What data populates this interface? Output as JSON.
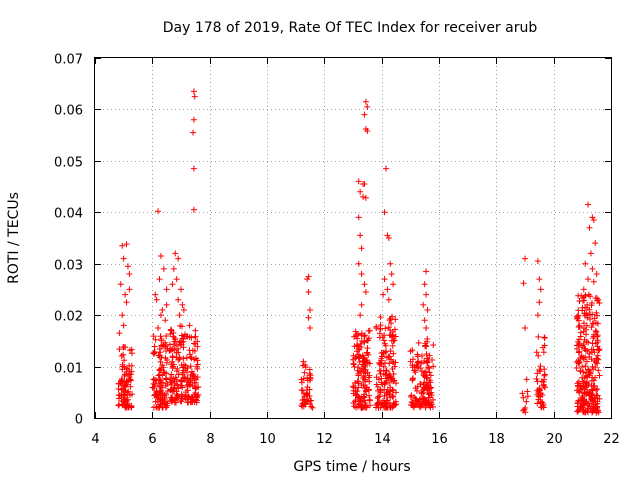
{
  "chart_data": {
    "type": "scatter",
    "title": "Day 178 of 2019, Rate Of TEC Index for receiver arub",
    "xlabel": "GPS time / hours",
    "ylabel": "ROTI / TECUs",
    "xlim": [
      4,
      22
    ],
    "ylim": [
      0,
      0.07
    ],
    "x_ticks": [
      4,
      6,
      8,
      10,
      12,
      14,
      16,
      18,
      20,
      22
    ],
    "x_tick_labels": [
      "4",
      "6",
      "8",
      "10",
      "12",
      "14",
      "16",
      "18",
      "20",
      "22"
    ],
    "y_ticks": [
      0,
      0.01,
      0.02,
      0.03,
      0.04,
      0.05,
      0.06,
      0.07
    ],
    "y_tick_labels": [
      "0",
      "0.01",
      "0.02",
      "0.03",
      "0.04",
      "0.05",
      "0.06",
      "0.07"
    ],
    "grid": true,
    "marker": "+",
    "color": "#ff0000",
    "clusters": [
      {
        "x_range": [
          4.8,
          5.3
        ],
        "y_low": [
          0.002,
          0.014
        ],
        "count": 90,
        "outliers": [
          [
            4.95,
            0.0335
          ],
          [
            5.1,
            0.0338
          ],
          [
            5.0,
            0.031
          ],
          [
            5.15,
            0.0295
          ],
          [
            5.2,
            0.028
          ],
          [
            4.9,
            0.026
          ],
          [
            5.05,
            0.024
          ],
          [
            5.1,
            0.0225
          ],
          [
            4.95,
            0.02
          ],
          [
            5.0,
            0.018
          ],
          [
            5.2,
            0.025
          ],
          [
            4.85,
            0.0165
          ]
        ]
      },
      {
        "x_range": [
          6.0,
          6.55
        ],
        "y_low": [
          0.002,
          0.016
        ],
        "count": 110,
        "outliers": [
          [
            6.2,
            0.0402
          ],
          [
            6.3,
            0.0315
          ],
          [
            6.4,
            0.029
          ],
          [
            6.25,
            0.027
          ],
          [
            6.5,
            0.025
          ],
          [
            6.15,
            0.023
          ],
          [
            6.35,
            0.021
          ],
          [
            6.45,
            0.019
          ],
          [
            6.2,
            0.0175
          ],
          [
            6.3,
            0.02
          ],
          [
            6.5,
            0.022
          ],
          [
            6.1,
            0.024
          ]
        ]
      },
      {
        "x_range": [
          6.6,
          7.2
        ],
        "y_low": [
          0.003,
          0.018
        ],
        "count": 120,
        "outliers": [
          [
            6.8,
            0.032
          ],
          [
            6.9,
            0.031
          ],
          [
            6.75,
            0.029
          ],
          [
            6.85,
            0.027
          ],
          [
            7.0,
            0.025
          ],
          [
            6.9,
            0.023
          ],
          [
            7.1,
            0.021
          ],
          [
            6.7,
            0.026
          ],
          [
            7.05,
            0.022
          ],
          [
            6.95,
            0.02
          ]
        ]
      },
      {
        "x_range": [
          7.2,
          7.6
        ],
        "y_low": [
          0.003,
          0.016
        ],
        "count": 80,
        "outliers": [
          [
            7.45,
            0.0635
          ],
          [
            7.48,
            0.0625
          ],
          [
            7.45,
            0.058
          ],
          [
            7.42,
            0.0555
          ],
          [
            7.45,
            0.0485
          ],
          [
            7.45,
            0.0405
          ],
          [
            7.3,
            0.018
          ],
          [
            7.5,
            0.017
          ]
        ]
      },
      {
        "x_range": [
          11.2,
          11.6
        ],
        "y_low": [
          0.002,
          0.011
        ],
        "count": 45,
        "outliers": [
          [
            11.45,
            0.0275
          ],
          [
            11.4,
            0.027
          ],
          [
            11.45,
            0.0245
          ],
          [
            11.5,
            0.021
          ],
          [
            11.45,
            0.0195
          ],
          [
            11.5,
            0.0175
          ]
        ]
      },
      {
        "x_range": [
          13.0,
          13.6
        ],
        "y_low": [
          0.002,
          0.017
        ],
        "count": 140,
        "outliers": [
          [
            13.45,
            0.0615
          ],
          [
            13.5,
            0.0605
          ],
          [
            13.4,
            0.059
          ],
          [
            13.45,
            0.0562
          ],
          [
            13.5,
            0.0558
          ],
          [
            13.2,
            0.046
          ],
          [
            13.35,
            0.0455
          ],
          [
            13.4,
            0.0455
          ],
          [
            13.25,
            0.044
          ],
          [
            13.35,
            0.043
          ],
          [
            13.45,
            0.0428
          ],
          [
            13.2,
            0.039
          ],
          [
            13.25,
            0.0355
          ],
          [
            13.3,
            0.033
          ],
          [
            13.2,
            0.03
          ],
          [
            13.3,
            0.028
          ],
          [
            13.4,
            0.026
          ],
          [
            13.45,
            0.0245
          ],
          [
            13.3,
            0.022
          ],
          [
            13.25,
            0.02
          ]
        ]
      },
      {
        "x_range": [
          13.8,
          14.5
        ],
        "y_low": [
          0.002,
          0.02
        ],
        "count": 160,
        "outliers": [
          [
            14.15,
            0.0485
          ],
          [
            14.1,
            0.04
          ],
          [
            14.2,
            0.0355
          ],
          [
            14.25,
            0.035
          ],
          [
            14.3,
            0.03
          ],
          [
            14.35,
            0.028
          ],
          [
            14.1,
            0.027
          ],
          [
            14.2,
            0.025
          ],
          [
            14.05,
            0.024
          ],
          [
            14.25,
            0.023
          ],
          [
            14.4,
            0.026
          ]
        ]
      },
      {
        "x_range": [
          15.0,
          15.8
        ],
        "y_low": [
          0.002,
          0.016
        ],
        "count": 140,
        "outliers": [
          [
            15.55,
            0.0285
          ],
          [
            15.5,
            0.026
          ],
          [
            15.55,
            0.024
          ],
          [
            15.45,
            0.022
          ],
          [
            15.6,
            0.021
          ],
          [
            15.5,
            0.019
          ],
          [
            15.55,
            0.0175
          ]
        ]
      },
      {
        "x_range": [
          18.9,
          19.1
        ],
        "y_low": [
          0.001,
          0.008
        ],
        "count": 10,
        "outliers": [
          [
            19.0,
            0.031
          ],
          [
            18.95,
            0.0262
          ],
          [
            19.0,
            0.0175
          ]
        ]
      },
      {
        "x_range": [
          19.4,
          19.7
        ],
        "y_low": [
          0.002,
          0.016
        ],
        "count": 45,
        "outliers": [
          [
            19.45,
            0.0305
          ],
          [
            19.5,
            0.027
          ],
          [
            19.55,
            0.025
          ],
          [
            19.5,
            0.0225
          ],
          [
            19.45,
            0.02
          ]
        ]
      },
      {
        "x_range": [
          20.8,
          21.6
        ],
        "y_low": [
          0.001,
          0.024
        ],
        "count": 260,
        "outliers": [
          [
            21.2,
            0.0415
          ],
          [
            21.35,
            0.039
          ],
          [
            21.4,
            0.0385
          ],
          [
            21.25,
            0.037
          ],
          [
            21.45,
            0.034
          ],
          [
            21.3,
            0.032
          ],
          [
            21.1,
            0.03
          ],
          [
            21.35,
            0.029
          ],
          [
            21.5,
            0.028
          ],
          [
            21.2,
            0.027
          ],
          [
            21.4,
            0.0265
          ],
          [
            21.05,
            0.025
          ]
        ]
      }
    ]
  }
}
